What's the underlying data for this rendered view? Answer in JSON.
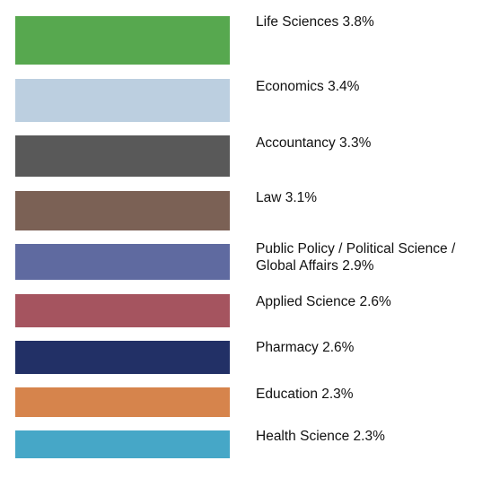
{
  "chart_data": {
    "type": "bar",
    "title": "",
    "legend_placement": "right",
    "grid": false,
    "categories": [
      "Life Sciences",
      "Economics",
      "Accountancy",
      "Law",
      "Public Policy / Political Science / Global Affairs",
      "Applied Science",
      "Pharmacy",
      "Education",
      "Health Science"
    ],
    "values": [
      3.8,
      3.4,
      3.3,
      3.1,
      2.9,
      2.6,
      2.6,
      2.3,
      2.3
    ],
    "unit": "%",
    "colors": [
      "#57a84f",
      "#bccfe0",
      "#595959",
      "#7b6155",
      "#5f6aa0",
      "#a5545f",
      "#223066",
      "#d6844c",
      "#46a7c7"
    ],
    "labels": [
      "Life Sciences 3.8%",
      "Economics 3.4%",
      "Accountancy 3.3%",
      "Law 3.1%",
      "Public Policy / Political Science / Global Affairs 2.9%",
      "Applied Science 2.6%",
      "Pharmacy 2.6%",
      "Education 2.3%",
      "Health Science 2.3%"
    ]
  }
}
